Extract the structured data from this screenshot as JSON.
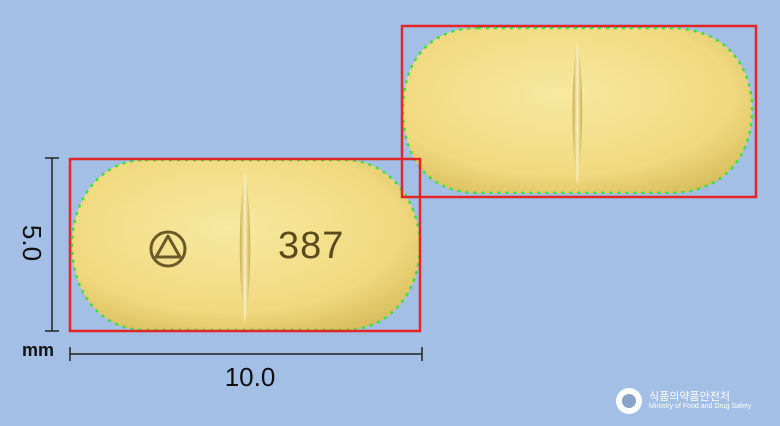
{
  "dimensions": {
    "height_value": "5.0",
    "width_value": "10.0",
    "unit": "mm"
  },
  "pill": {
    "imprint_symbol": "circled-triangle-logo",
    "imprint_text": "387",
    "color": "#f2de86",
    "score_line": true
  },
  "colors": {
    "background": "#a3bfe6",
    "box_outline": "#e32626",
    "contour_dots": "#3ce03c"
  },
  "footer": {
    "agency_korean": "식품의약품안전처",
    "agency_english": "Ministry of Food and Drug Safety"
  }
}
